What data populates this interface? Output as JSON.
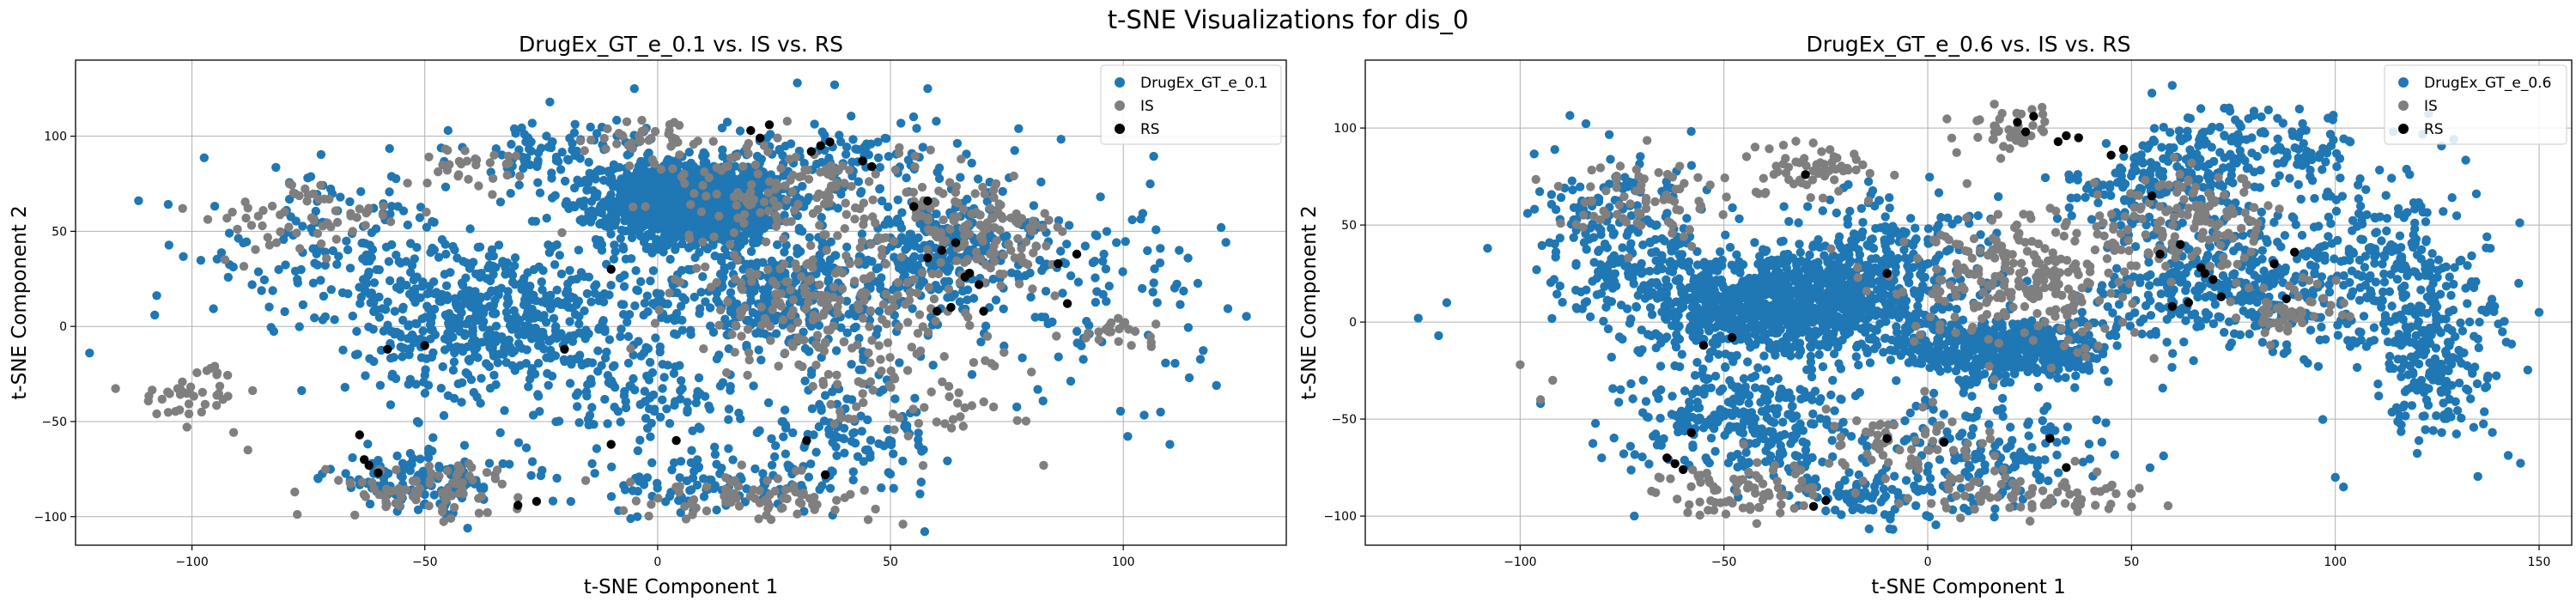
{
  "figure": {
    "title": "t-SNE Visualizations for dis_0"
  },
  "colors": {
    "generated": "#1f77b4",
    "is": "#7f7f7f",
    "rs": "#000000",
    "grid": "#b0b0b0"
  },
  "chart_data": [
    {
      "type": "scatter",
      "title": "DrugEx_GT_e_0.1 vs. IS vs. RS",
      "xlabel": "t-SNE Component 1",
      "ylabel": "t-SNE Component 2",
      "xlim": [
        -125,
        135
      ],
      "ylim": [
        -115,
        140
      ],
      "xticks": [
        -100,
        -50,
        0,
        50,
        100
      ],
      "yticks": [
        -100,
        -50,
        0,
        50,
        100
      ],
      "grid": true,
      "legend": "top-right",
      "series": [
        {
          "name": "DrugEx_GT_e_0.1",
          "color": "#1f77b4",
          "clusters": [
            [
              8,
              65,
              14,
              15,
              1500
            ],
            [
              -35,
              5,
              20,
              30,
              550
            ],
            [
              25,
              15,
              25,
              25,
              400
            ],
            [
              60,
              40,
              15,
              18,
              250
            ],
            [
              -50,
              -80,
              15,
              12,
              120
            ],
            [
              40,
              -60,
              15,
              20,
              120
            ],
            [
              10,
              -85,
              20,
              10,
              100
            ],
            [
              -70,
              40,
              20,
              30,
              150
            ],
            [
              90,
              20,
              20,
              40,
              120
            ],
            [
              -20,
              90,
              15,
              15,
              100
            ],
            [
              40,
              90,
              20,
              15,
              100
            ],
            [
              0,
              -40,
              15,
              20,
              100
            ]
          ],
          "points": [
            [
              -122,
              -14
            ],
            [
              -108,
              6
            ],
            [
              120,
              -31
            ],
            [
              121,
              52
            ],
            [
              108,
              -45
            ],
            [
              110,
              -62
            ],
            [
              112,
              40
            ],
            [
              30,
              128
            ],
            [
              38,
              127
            ],
            [
              58,
              125
            ],
            [
              -5,
              125
            ],
            [
              -45,
              103
            ]
          ]
        },
        {
          "name": "IS",
          "color": "#7f7f7f",
          "clusters": [
            [
              30,
              70,
              20,
              20,
              150
            ],
            [
              35,
              10,
              22,
              25,
              200
            ],
            [
              70,
              50,
              12,
              20,
              130
            ],
            [
              -75,
              55,
              15,
              15,
              60
            ],
            [
              -50,
              -85,
              15,
              10,
              80
            ],
            [
              20,
              -90,
              20,
              8,
              80
            ],
            [
              -100,
              -35,
              8,
              10,
              40
            ],
            [
              0,
              100,
              10,
              8,
              40
            ],
            [
              -40,
              85,
              10,
              8,
              30
            ],
            [
              98,
              -3,
              6,
              4,
              25
            ],
            [
              55,
              -35,
              20,
              20,
              60
            ]
          ],
          "points": [
            [
              -102,
              62
            ],
            [
              -88,
              -65
            ],
            [
              -96,
              -22
            ]
          ]
        },
        {
          "name": "RS",
          "color": "#000000",
          "points": [
            [
              20,
              103
            ],
            [
              24,
              106
            ],
            [
              22,
              99
            ],
            [
              35,
              95
            ],
            [
              37,
              97
            ],
            [
              33,
              92
            ],
            [
              46,
              84
            ],
            [
              44,
              87
            ],
            [
              55,
              63
            ],
            [
              58,
              66
            ],
            [
              58,
              36
            ],
            [
              61,
              40
            ],
            [
              67,
              28
            ],
            [
              69,
              22
            ],
            [
              66,
              26
            ],
            [
              70,
              8
            ],
            [
              63,
              10
            ],
            [
              60,
              8
            ],
            [
              64,
              44
            ],
            [
              -20,
              -12
            ],
            [
              -58,
              -12
            ],
            [
              -64,
              -57
            ],
            [
              -62,
              -73
            ],
            [
              -60,
              -77
            ],
            [
              -63,
              -70
            ],
            [
              -50,
              -10
            ],
            [
              -10,
              -62
            ],
            [
              4,
              -60
            ],
            [
              32,
              -60
            ],
            [
              36,
              -78
            ],
            [
              -30,
              -94
            ],
            [
              -26,
              -92
            ],
            [
              88,
              12
            ],
            [
              86,
              33
            ],
            [
              90,
              38
            ],
            [
              -10,
              30
            ]
          ]
        }
      ]
    },
    {
      "type": "scatter",
      "title": "DrugEx_GT_e_0.6 vs. IS vs. RS",
      "xlabel": "t-SNE Component 1",
      "ylabel": "t-SNE Component 2",
      "xlim": [
        -138,
        158
      ],
      "ylim": [
        -115,
        135
      ],
      "xticks": [
        -100,
        -50,
        0,
        50,
        100,
        150
      ],
      "yticks": [
        -100,
        -50,
        0,
        50,
        100
      ],
      "grid": true,
      "legend": "top-right",
      "series": [
        {
          "name": "DrugEx_GT_e_0.6",
          "color": "#1f77b4",
          "clusters": [
            [
              -35,
              10,
              25,
              20,
              1200
            ],
            [
              20,
              -15,
              18,
              12,
              500
            ],
            [
              -45,
              -50,
              20,
              20,
              300
            ],
            [
              -75,
              40,
              15,
              30,
              200
            ],
            [
              70,
              20,
              20,
              25,
              300
            ],
            [
              110,
              30,
              20,
              35,
              300
            ],
            [
              125,
              -20,
              12,
              30,
              200
            ],
            [
              80,
              90,
              20,
              15,
              150
            ],
            [
              15,
              -70,
              20,
              20,
              150
            ],
            [
              -15,
              -90,
              15,
              10,
              80
            ],
            [
              55,
              70,
              15,
              15,
              150
            ],
            [
              -10,
              40,
              20,
              20,
              150
            ]
          ],
          "points": [
            [
              -125,
              2
            ],
            [
              -120,
              -7
            ],
            [
              -118,
              10
            ],
            [
              -108,
              38
            ],
            [
              -95,
              -42
            ],
            [
              -80,
              -70
            ],
            [
              -72,
              -100
            ],
            [
              150,
              5
            ],
            [
              145,
              20
            ],
            [
              141,
              -5
            ],
            [
              100,
              -80
            ],
            [
              102,
              -85
            ],
            [
              60,
              122
            ],
            [
              55,
              118
            ],
            [
              67,
              110
            ]
          ]
        },
        {
          "name": "IS",
          "color": "#7f7f7f",
          "clusters": [
            [
              25,
              20,
              22,
              25,
              250
            ],
            [
              65,
              50,
              15,
              18,
              130
            ],
            [
              -70,
              65,
              15,
              15,
              70
            ],
            [
              -30,
              80,
              12,
              10,
              60
            ],
            [
              -45,
              -85,
              15,
              10,
              80
            ],
            [
              25,
              -90,
              20,
              8,
              80
            ],
            [
              -5,
              -60,
              15,
              15,
              60
            ],
            [
              90,
              5,
              10,
              12,
              50
            ],
            [
              20,
              100,
              10,
              8,
              40
            ]
          ],
          "points": [
            [
              -92,
              -30
            ],
            [
              -95,
              -40
            ],
            [
              -100,
              -22
            ]
          ]
        },
        {
          "name": "RS",
          "color": "#000000",
          "points": [
            [
              22,
              103
            ],
            [
              26,
              106
            ],
            [
              24,
              98
            ],
            [
              34,
              96
            ],
            [
              37,
              95
            ],
            [
              32,
              93
            ],
            [
              45,
              86
            ],
            [
              48,
              89
            ],
            [
              55,
              65
            ],
            [
              57,
              35
            ],
            [
              62,
              40
            ],
            [
              67,
              28
            ],
            [
              70,
              22
            ],
            [
              68,
              25
            ],
            [
              72,
              13
            ],
            [
              64,
              10
            ],
            [
              60,
              8
            ],
            [
              -58,
              -57
            ],
            [
              -62,
              -73
            ],
            [
              -60,
              -76
            ],
            [
              -64,
              -70
            ],
            [
              -55,
              -12
            ],
            [
              -48,
              -8
            ],
            [
              -25,
              -92
            ],
            [
              -28,
              -95
            ],
            [
              -10,
              -60
            ],
            [
              4,
              -62
            ],
            [
              30,
              -60
            ],
            [
              34,
              -75
            ],
            [
              -30,
              76
            ],
            [
              88,
              12
            ],
            [
              85,
              30
            ],
            [
              90,
              36
            ],
            [
              -10,
              25
            ]
          ]
        }
      ]
    }
  ]
}
